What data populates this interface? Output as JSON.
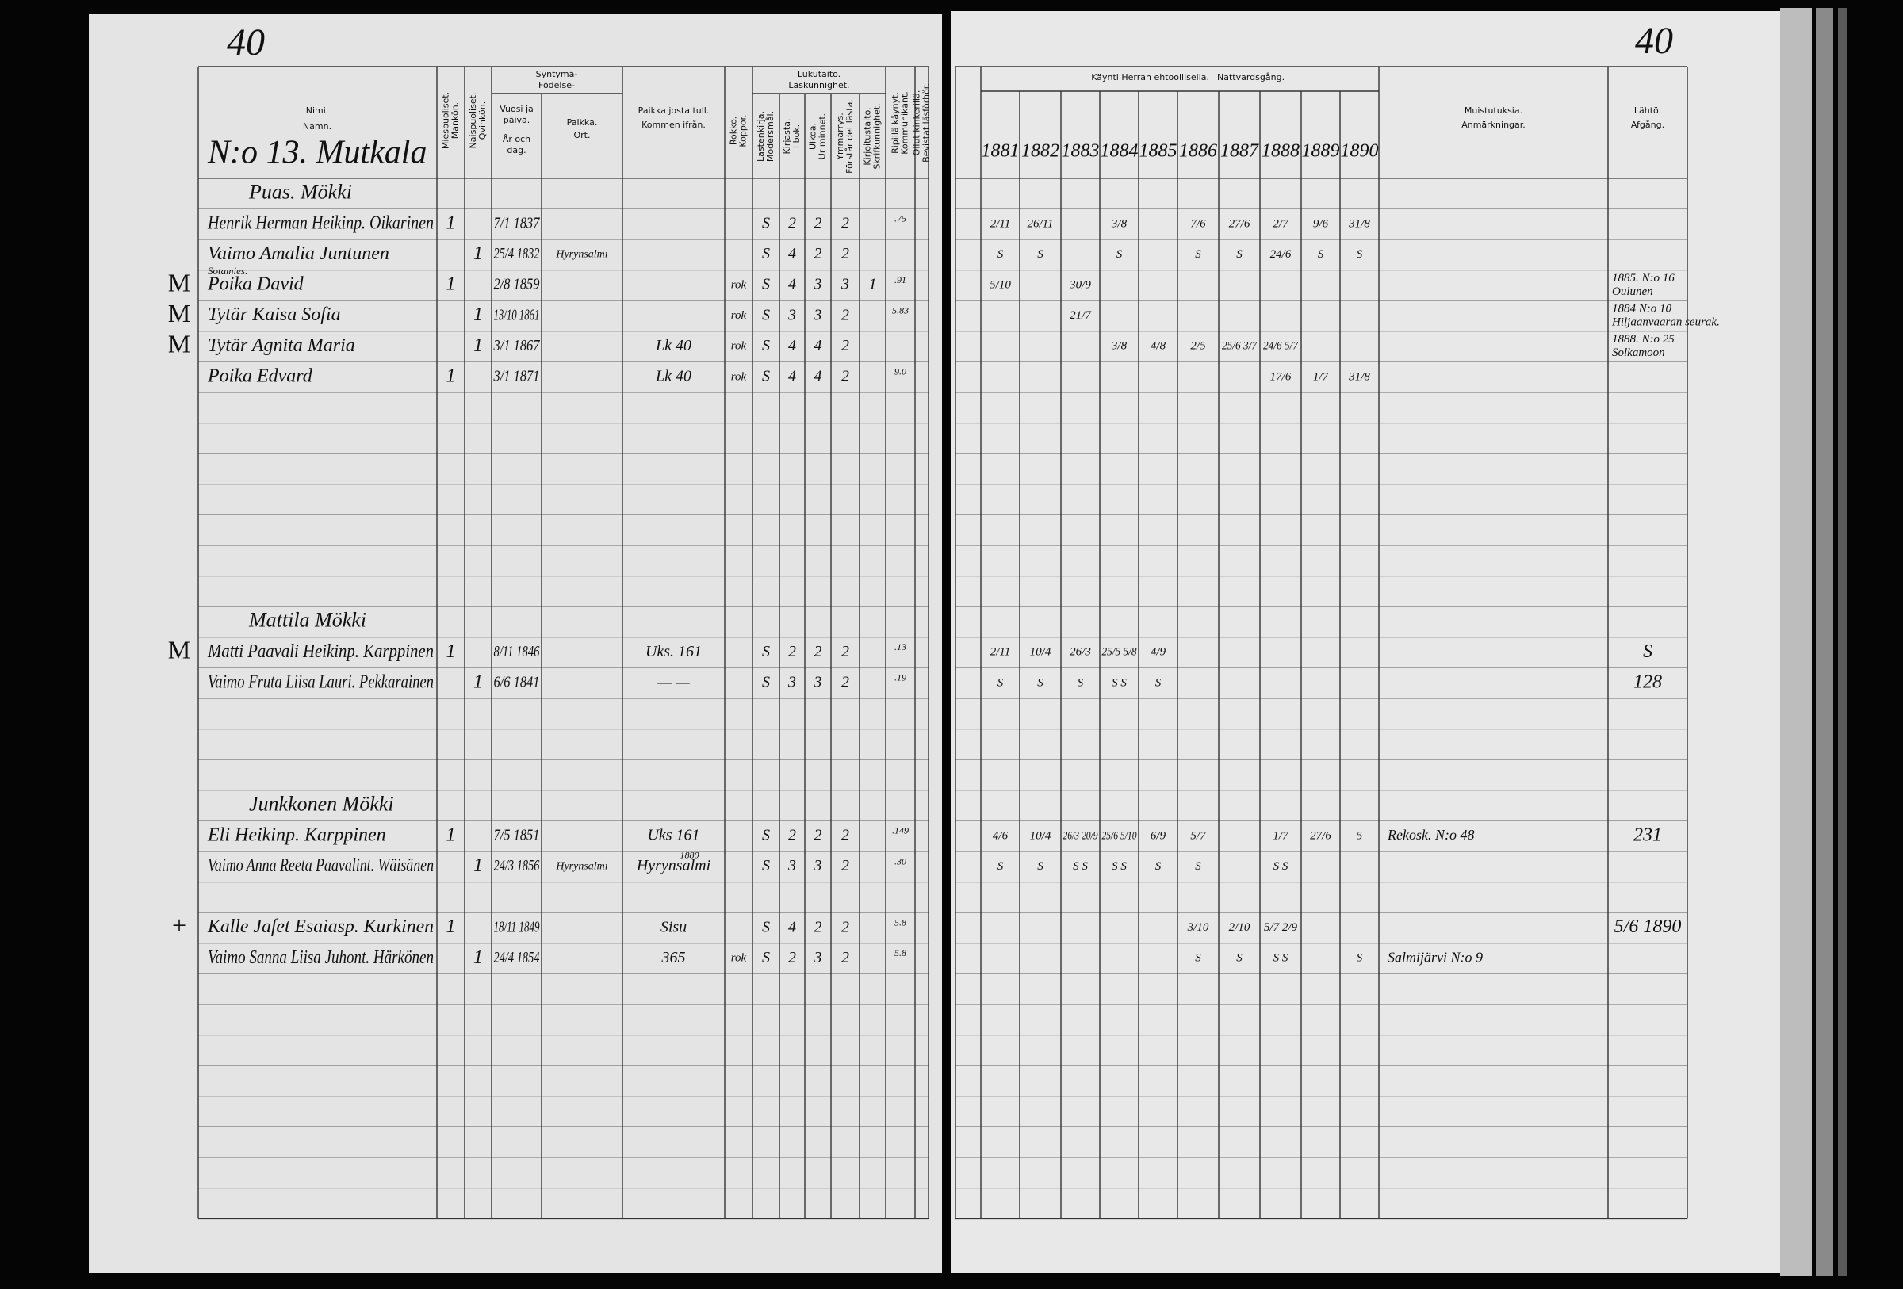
{
  "page_numbers": [
    "40",
    "40"
  ],
  "left_header": {
    "name": [
      "Nimi.",
      "Namn."
    ],
    "house": "N:o 13. Mutkala",
    "male": [
      "Miespuoliset.",
      "Mankön."
    ],
    "female": [
      "Naispuoliset.",
      "Qvinkön."
    ],
    "birth": [
      "Syntymä-",
      "Födelse-"
    ],
    "birth_date": [
      "Vuosi ja",
      "päivä.",
      "År och",
      "dag."
    ],
    "birth_place": [
      "Paikka.",
      "Ort."
    ],
    "from": [
      "Paikka josta tull.",
      "Kommen ifrån."
    ],
    "vacc": [
      "Rokko.",
      "Koppor."
    ],
    "literacy": [
      "Lukutaito.",
      "Läskunnighet."
    ],
    "reading_cols": [
      [
        "Lastenkirja.",
        "Modersmål."
      ],
      [
        "Kirjasta.",
        "I bok."
      ],
      [
        "Ulkoa.",
        "Ur minnet."
      ],
      [
        "Ymmärrys.",
        "Förstår det lästa."
      ],
      [
        "Kirjoitustaito.",
        "Skrifkunnighet."
      ]
    ],
    "visits": [
      "Ripillä käynyt.",
      "Kommunikant."
    ],
    "hearings": [
      "Ollut kinkerillä.",
      "Bevistat läsförhör."
    ]
  },
  "right_header": {
    "communion": "Käynti Herran ehtoollisella.",
    "communion_sv": "Nattvardsgång.",
    "years": [
      "1881",
      "1882",
      "1883",
      "1884",
      "1885",
      "1886",
      "1887",
      "1888",
      "1889",
      "1890"
    ],
    "remarks": [
      "Muistutuksia.",
      "Anmärkningar."
    ],
    "departure": [
      "Lähtö.",
      "Afgång."
    ]
  },
  "rows": [
    {
      "heading": "Puas. Mökki"
    },
    {
      "name": "Henrik Herman Heikinp. Oikarinen",
      "male": "1",
      "born": "7/1 1837",
      "reading": [
        "S",
        "2",
        "2",
        "2"
      ],
      "visits": ".75",
      "communion": [
        "2/11",
        "26/11",
        null,
        "3/8",
        null,
        "7/6",
        "27/6",
        "2/7",
        "9/6",
        "31/8"
      ]
    },
    {
      "name": "Vaimo Amalia Juntunen",
      "female": "1",
      "born": "25/4 1832",
      "place": "Hyrynsalmi",
      "reading": [
        "S",
        "4",
        "2",
        "2"
      ],
      "communion": [
        "S",
        "S",
        null,
        "S",
        null,
        "S",
        "S",
        "24/6",
        "S",
        "S"
      ]
    },
    {
      "note": "Sotamies.",
      "name": "Poika David",
      "male": "1",
      "born": "2/8 1859",
      "vacc": "rok",
      "reading": [
        "S",
        "4",
        "3",
        "3",
        "1"
      ],
      "visits": ".91",
      "communion": [
        "5/10",
        null,
        "30/9",
        null,
        null,
        null,
        null,
        null,
        null,
        null
      ],
      "departure": [
        "1885. N:o 16",
        "Oulunen"
      ],
      "margin": "M"
    },
    {
      "name": "Tytär Kaisa Sofia",
      "female": "1",
      "born": "13/10 1861",
      "vacc": "rok",
      "reading": [
        "S",
        "3",
        "3",
        "2"
      ],
      "visits": "5.83",
      "communion": [
        null,
        null,
        "21/7",
        null,
        null,
        null,
        null,
        null,
        null,
        null
      ],
      "departure": [
        "1884 N:o 10",
        "Hiljaanvaaran seurak."
      ],
      "margin": "M"
    },
    {
      "name": "Tytär Agnita Maria",
      "female": "1",
      "born": "3/1 1867",
      "from": "Lk 40",
      "vacc": "rok",
      "reading": [
        "S",
        "4",
        "4",
        "2"
      ],
      "communion": [
        null,
        null,
        null,
        "3/8",
        "4/8",
        "2/5",
        "25/6 3/7",
        "24/6 5/7",
        null,
        null
      ],
      "departure": [
        "1888. N:o 25",
        "Solkamoon"
      ],
      "margin": "M"
    },
    {
      "name": "Poika Edvard",
      "male": "1",
      "born": "3/1 1871",
      "from": "Lk 40",
      "vacc": "rok",
      "reading": [
        "S",
        "4",
        "4",
        "2"
      ],
      "visits": "9.0",
      "communion": [
        null,
        null,
        null,
        null,
        null,
        null,
        null,
        "17/6",
        "1/7",
        "31/8"
      ]
    },
    null,
    null,
    null,
    null,
    null,
    null,
    null,
    {
      "heading": "Mattila Mökki"
    },
    {
      "name": "Matti Paavali Heikinp. Karppinen",
      "male": "1",
      "born": "8/11 1846",
      "from": "Uks. 161",
      "reading": [
        "S",
        "2",
        "2",
        "2"
      ],
      "visits": ".13",
      "communion": [
        "2/11",
        "10/4",
        "26/3",
        "25/5 5/8",
        "4/9",
        null,
        null,
        null,
        null,
        null
      ],
      "departure": [
        "S"
      ],
      "margin": "M"
    },
    {
      "name": "Vaimo Fruta Liisa Lauri. Pekkarainen",
      "female": "1",
      "born": "6/6 1841",
      "from": "— —",
      "reading": [
        "S",
        "3",
        "3",
        "2"
      ],
      "visits": ".19",
      "communion": [
        "S",
        "S",
        "S",
        "S S",
        "S",
        null,
        null,
        null,
        null,
        null
      ],
      "departure": [
        "128"
      ]
    },
    null,
    null,
    null,
    {
      "heading": "Junkkonen Mökki"
    },
    {
      "name": "Eli Heikinp. Karppinen",
      "male": "1",
      "born": "7/5 1851",
      "from": "Uks 161",
      "reading": [
        "S",
        "2",
        "2",
        "2"
      ],
      "visits": ".149",
      "communion": [
        "4/6",
        "10/4",
        "26/3 20/9",
        "25/6 5/10",
        "6/9",
        "5/7",
        null,
        "1/7",
        "27/6",
        "5"
      ],
      "remarks": "Rekosk. N:o 48",
      "departure": [
        "231"
      ]
    },
    {
      "name": "Vaimo Anna Reeta Paavalint. Wäisänen",
      "female": "1",
      "born": "24/3 1856",
      "place": "Hyrynsalmi",
      "from_year": "1880",
      "from": "Hyrynsalmi",
      "reading": [
        "S",
        "3",
        "3",
        "2"
      ],
      "visits": ".30",
      "communion": [
        "S",
        "S",
        "S S",
        "S S",
        "S",
        "S",
        null,
        "S S",
        null,
        null
      ]
    },
    null,
    {
      "name": "Kalle Jafet Esaiasp. Kurkinen",
      "male": "1",
      "born": "18/11 1849",
      "from": "Sisu",
      "reading": [
        "S",
        "4",
        "2",
        "2"
      ],
      "visits": "5.8",
      "communion": [
        null,
        null,
        null,
        null,
        null,
        "3/10",
        "2/10",
        "5/7 2/9",
        null,
        null
      ],
      "departure": [
        "5/6 1890"
      ],
      "margin": "+"
    },
    {
      "name": "Vaimo Sanna Liisa Juhont. Härkönen",
      "female": "1",
      "born": "24/4 1854",
      "from": "365",
      "vacc": "rok",
      "reading": [
        "S",
        "2",
        "3",
        "2"
      ],
      "visits": "5.8",
      "communion": [
        null,
        null,
        null,
        null,
        null,
        "S",
        "S",
        "S S",
        null,
        "S"
      ],
      "remarks": "Salmijärvi N:o 9"
    },
    null,
    null,
    null,
    null,
    null,
    null,
    null,
    null
  ]
}
